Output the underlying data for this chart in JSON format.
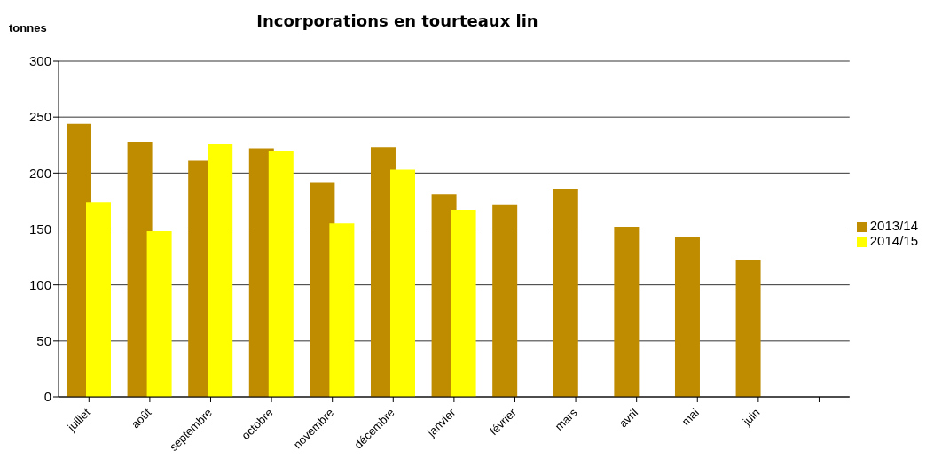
{
  "chart_data": {
    "type": "bar",
    "title": "Incorporations en tourteaux lin",
    "ylabel": "tonnes",
    "categories": [
      "juillet",
      "août",
      "septembre",
      "octobre",
      "novembre",
      "décembre",
      "janvier",
      "février",
      "mars",
      "avril",
      "mai",
      "juin",
      null
    ],
    "series": [
      {
        "name": "2013/14",
        "color": "#bf8c00",
        "values": [
          244,
          228,
          211,
          222,
          192,
          223,
          181,
          172,
          186,
          152,
          143,
          122,
          null
        ]
      },
      {
        "name": "2014/15",
        "color": "#ffff00",
        "values": [
          174,
          148,
          226,
          220,
          155,
          203,
          167,
          null,
          null,
          null,
          null,
          null,
          null
        ]
      }
    ],
    "ylim": [
      0,
      300
    ],
    "yticks": [
      0,
      50,
      100,
      150,
      200,
      250,
      300
    ],
    "grid": "y",
    "legend": "right"
  }
}
